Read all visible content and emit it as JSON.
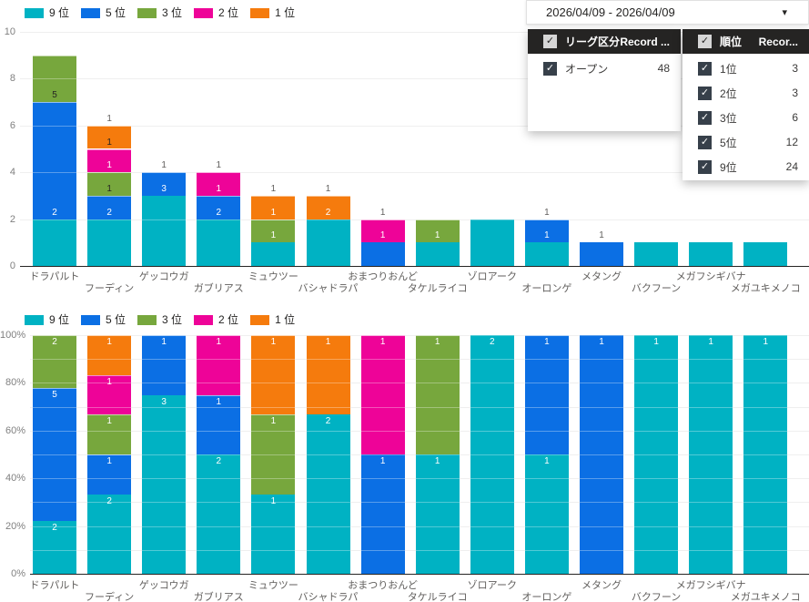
{
  "legend": {
    "items": [
      {
        "label": "9 位",
        "color": "#00B2C3"
      },
      {
        "label": "5 位",
        "color": "#0B6FE4"
      },
      {
        "label": "3 位",
        "color": "#77A73D"
      },
      {
        "label": "2 位",
        "color": "#EE0398"
      },
      {
        "label": "1 位",
        "color": "#F57B0D"
      }
    ]
  },
  "filters": {
    "date_slicer": {
      "value": "2026/04/09 - 2026/04/09"
    },
    "league_panel": {
      "title": "リーグ区分",
      "count_column": "Record ...",
      "select_all_checked": true,
      "rows": [
        {
          "label": "オープン",
          "count": "48",
          "checked": true
        }
      ]
    },
    "rank_panel": {
      "title": "順位",
      "count_column": "Recor...",
      "select_all_checked": true,
      "rows": [
        {
          "label": "1位",
          "count": "3",
          "checked": true
        },
        {
          "label": "2位",
          "count": "3",
          "checked": true
        },
        {
          "label": "3位",
          "count": "6",
          "checked": true
        },
        {
          "label": "5位",
          "count": "12",
          "checked": true
        },
        {
          "label": "9位",
          "count": "24",
          "checked": true
        }
      ]
    }
  },
  "chart_data": [
    {
      "type": "bar",
      "stacked": true,
      "percent": false,
      "title": "",
      "xlabel": "",
      "ylabel": "",
      "ylim": [
        0,
        10
      ],
      "y_tick_values": [
        0,
        2,
        4,
        6,
        8,
        10
      ],
      "grid": true,
      "legend_position": "top",
      "categories": [
        "ドラパルト",
        "フーディン",
        "ゲッコウガ",
        "ガブリアス",
        "ミュウツー",
        "バシャドラパ",
        "おまつりおんど",
        "タケルライコ",
        "ゾロアーク",
        "オーロンゲ",
        "メタング",
        "バクフーン",
        "メガフシギバナ",
        "メガユキメノコ"
      ],
      "label_style": "above-segment-top",
      "series": [
        {
          "name": "9位",
          "color": "#00B2C3",
          "values": [
            2,
            2,
            3,
            2,
            1,
            2,
            0,
            1,
            2,
            1,
            0,
            1,
            1,
            1
          ],
          "label_tones": [
            "white",
            "white",
            "white",
            "white",
            "white",
            "white",
            null,
            "white",
            null,
            "white",
            null,
            null,
            null,
            null
          ]
        },
        {
          "name": "5位",
          "color": "#0B6FE4",
          "values": [
            5,
            1,
            1,
            1,
            0,
            0,
            1,
            0,
            0,
            1,
            1,
            0,
            0,
            0
          ],
          "label_tones": [
            "dark",
            "dark",
            "outside",
            "white",
            null,
            null,
            "white",
            null,
            null,
            "outside",
            "outside",
            null,
            null,
            null
          ]
        },
        {
          "name": "3位",
          "color": "#77A73D",
          "values": [
            2,
            1,
            0,
            0,
            1,
            0,
            0,
            1,
            0,
            0,
            0,
            0,
            0,
            0
          ],
          "label_tones": [
            null,
            "white",
            null,
            null,
            "white",
            null,
            null,
            null,
            null,
            null,
            null,
            null,
            null,
            null
          ]
        },
        {
          "name": "2位",
          "color": "#EE0398",
          "values": [
            0,
            1,
            0,
            1,
            0,
            0,
            1,
            0,
            0,
            0,
            0,
            0,
            0,
            0
          ],
          "label_tones": [
            null,
            "dark",
            null,
            "outside",
            null,
            null,
            "outside",
            null,
            null,
            null,
            null,
            null,
            null,
            null
          ]
        },
        {
          "name": "1位",
          "color": "#F57B0D",
          "values": [
            0,
            1,
            0,
            0,
            1,
            1,
            0,
            0,
            0,
            0,
            0,
            0,
            0,
            0
          ],
          "label_tones": [
            null,
            "outside",
            null,
            null,
            "outside",
            "outside",
            null,
            null,
            null,
            null,
            null,
            null,
            null,
            null
          ]
        }
      ]
    },
    {
      "type": "bar",
      "stacked": true,
      "percent": true,
      "title": "",
      "xlabel": "",
      "ylabel": "",
      "ylim": [
        0,
        100
      ],
      "y_tick_labels": [
        "0%",
        "20%",
        "40%",
        "60%",
        "80%",
        "100%"
      ],
      "grid": true,
      "legend_position": "top",
      "categories": [
        "ドラパルト",
        "フーディン",
        "ゲッコウガ",
        "ガブリアス",
        "ミュウツー",
        "バシャドラパ",
        "おまつりおんど",
        "タケルライコ",
        "ゾロアーク",
        "オーロンゲ",
        "メタング",
        "バクフーン",
        "メガフシギバナ",
        "メガユキメノコ"
      ],
      "label_style": "inside-segment-top-white",
      "series": [
        {
          "name": "9位",
          "color": "#00B2C3",
          "values": [
            2,
            2,
            3,
            2,
            1,
            2,
            0,
            1,
            2,
            1,
            0,
            1,
            1,
            1
          ]
        },
        {
          "name": "5位",
          "color": "#0B6FE4",
          "values": [
            5,
            1,
            1,
            1,
            0,
            0,
            1,
            0,
            0,
            1,
            1,
            0,
            0,
            0
          ]
        },
        {
          "name": "3位",
          "color": "#77A73D",
          "values": [
            2,
            1,
            0,
            0,
            1,
            0,
            0,
            1,
            0,
            0,
            0,
            0,
            0,
            0
          ]
        },
        {
          "name": "2位",
          "color": "#EE0398",
          "values": [
            0,
            1,
            0,
            1,
            0,
            0,
            1,
            0,
            0,
            0,
            0,
            0,
            0,
            0
          ]
        },
        {
          "name": "1位",
          "color": "#F57B0D",
          "values": [
            0,
            1,
            0,
            0,
            1,
            1,
            0,
            0,
            0,
            0,
            0,
            0,
            0,
            0
          ]
        }
      ]
    }
  ]
}
